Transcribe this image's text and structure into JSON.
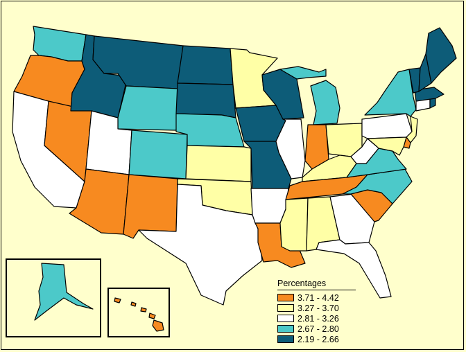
{
  "colors": {
    "background": "#ffffcc",
    "class_1": "#f78a20",
    "class_2": "#ffffa6",
    "class_3": "#ffffff",
    "class_4": "#4cc9c9",
    "class_5": "#0d5c78"
  },
  "legend": {
    "title": "Percentages",
    "items": [
      {
        "label": "3.71 - 4.42",
        "color": "#f78a20"
      },
      {
        "label": "3.27 - 3.70",
        "color": "#ffffa6"
      },
      {
        "label": "2.81 - 3.26",
        "color": "#ffffff"
      },
      {
        "label": "2.67 - 2.80",
        "color": "#4cc9c9"
      },
      {
        "label": "2.19 - 2.66",
        "color": "#0d5c78"
      }
    ]
  },
  "state_classes": {
    "WA": 4,
    "OR": 1,
    "CA": 3,
    "NV": 1,
    "ID": 5,
    "MT": 5,
    "WY": 4,
    "UT": 3,
    "AZ": 1,
    "CO": 4,
    "NM": 1,
    "ND": 5,
    "SD": 5,
    "NE": 4,
    "KS": 2,
    "OK": 2,
    "TX": 3,
    "MN": 2,
    "IA": 5,
    "MO": 5,
    "AR": 3,
    "LA": 1,
    "WI": 5,
    "IL": 3,
    "MI": 4,
    "IN": 1,
    "OH": 2,
    "KY": 2,
    "TN": 1,
    "MS": 2,
    "AL": 2,
    "GA": 3,
    "FL": 3,
    "SC": 1,
    "NC": 4,
    "VA": 4,
    "WV": 3,
    "PA": 3,
    "NY": 4,
    "VT": 5,
    "NH": 5,
    "ME": 5,
    "MA": 5,
    "RI": 5,
    "CT": 3,
    "NJ": 2,
    "DE": 1,
    "MD": 2,
    "AK": 4,
    "HI": 1
  }
}
